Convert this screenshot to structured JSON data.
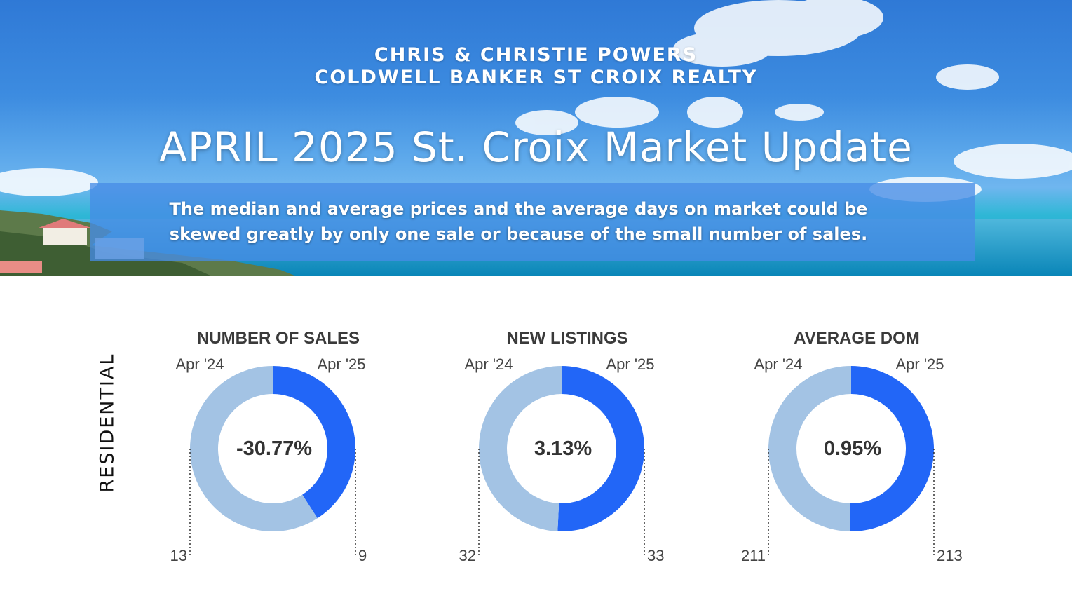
{
  "header": {
    "agent_line1": "CHRIS & CHRISTIE POWERS",
    "agent_line2": "COLDWELL BANKER ST CROIX REALTY",
    "title": "APRIL 2025 St. Croix Market Update",
    "notice_line1": "The median and average prices and  the average days on market could be",
    "notice_line2": "skewed greatly by only one sale or because of the small number of sales."
  },
  "section_label": "RESIDENTIAL",
  "colors": {
    "prior": "#a3c3e4",
    "current": "#2266f7",
    "banner_blue": "#3d8ce0"
  },
  "chart_data": [
    {
      "type": "pie",
      "title": "NUMBER OF SALES",
      "categories": [
        "Apr '24",
        "Apr '25"
      ],
      "values": [
        13,
        9
      ],
      "change_label": "-30.77%"
    },
    {
      "type": "pie",
      "title": "NEW LISTINGS",
      "categories": [
        "Apr '24",
        "Apr '25"
      ],
      "values": [
        32,
        33
      ],
      "change_label": "3.13%"
    },
    {
      "type": "pie",
      "title": "AVERAGE DOM",
      "categories": [
        "Apr '24",
        "Apr '25"
      ],
      "values": [
        211,
        213
      ],
      "change_label": "0.95%"
    }
  ]
}
